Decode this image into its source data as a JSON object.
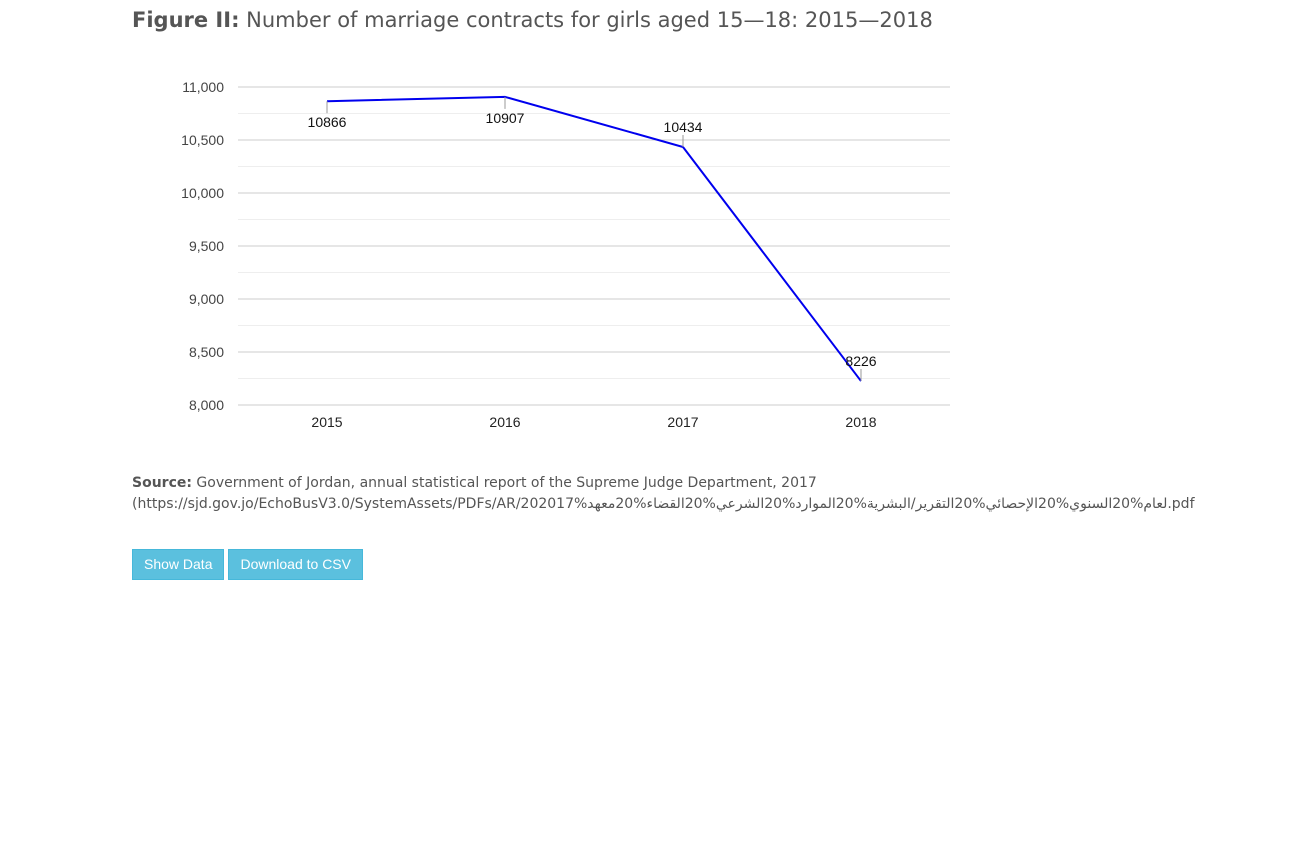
{
  "figure": {
    "label": "Figure II:",
    "title": "Number of marriage contracts for girls aged 15—18: 2015—2018"
  },
  "chart_data": {
    "type": "line",
    "categories": [
      "2015",
      "2016",
      "2017",
      "2018"
    ],
    "series": [
      {
        "values": [
          10866,
          10907,
          10434,
          8226
        ],
        "color": "#0000ee"
      }
    ],
    "data_labels": [
      "10866",
      "10907",
      "10434",
      "8226"
    ],
    "y_ticks": [
      "11,000",
      "10,500",
      "10,000",
      "9,500",
      "9,000",
      "8,500",
      "8,000"
    ],
    "ylim": [
      8000,
      11000
    ],
    "grid": true,
    "legend": "none"
  },
  "source": {
    "label": "Source:",
    "text": "Government of Jordan, annual statistical report of the Supreme Judge Department, 2017",
    "url": "(https://sjd.gov.jo/EchoBusV3.0/SystemAssets/PDFs/AR/202017%لعام%20السنوي%20الإحصائي%20التقرير/البشرية%20الموارد%20الشرعي%20القضاء%20معهد.pdf"
  },
  "buttons": {
    "show_data": "Show Data",
    "download_csv": "Download to CSV"
  }
}
